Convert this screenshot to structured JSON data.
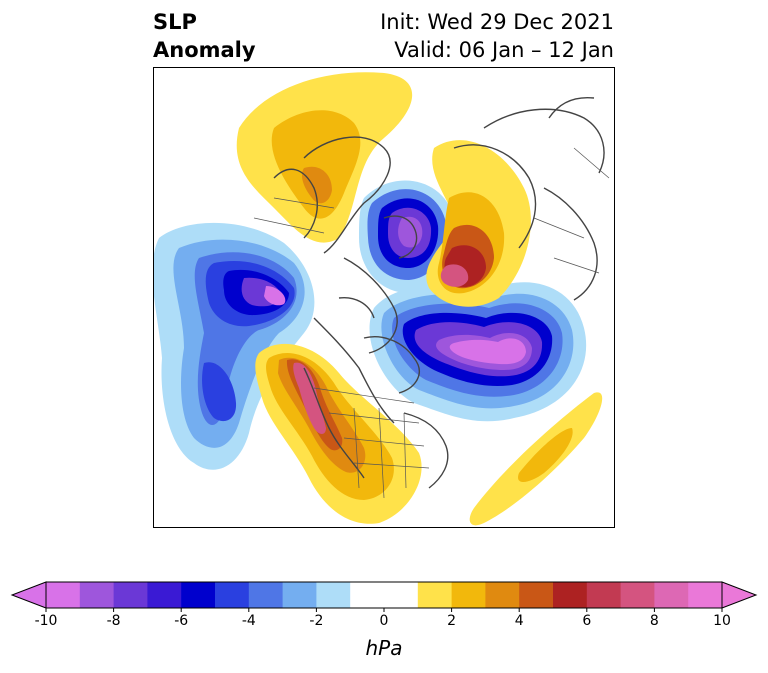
{
  "header": {
    "title_line1": "SLP",
    "title_line2": "Anomaly",
    "init": "Init: Wed 29 Dec 2021",
    "valid": "Valid: 06 Jan – 12 Jan"
  },
  "colorbar": {
    "unit": "hPa",
    "ticks": [
      "-10",
      "-8",
      "-6",
      "-4",
      "-2",
      "0",
      "2",
      "4",
      "6",
      "8",
      "10"
    ],
    "colors": [
      "#d872e8",
      "#9e56dc",
      "#6b38d6",
      "#3a1ad4",
      "#0000cd",
      "#2a40e0",
      "#4f76e6",
      "#74aef0",
      "#aeddf8",
      "#ffffff",
      "#ffffff",
      "#ffe24a",
      "#f2b80c",
      "#e08a10",
      "#c95716",
      "#ad2222",
      "#c23a52",
      "#d45480",
      "#dd68b4",
      "#ea78d8"
    ]
  },
  "map": {
    "features": [
      "negative-anomaly-north-pacific",
      "negative-anomaly-hudson-bay",
      "negative-anomaly-north-atlantic",
      "positive-anomaly-western-north-america",
      "positive-anomaly-scandinavia",
      "positive-anomaly-siberia",
      "positive-anomaly-subtropical-atlantic"
    ]
  }
}
